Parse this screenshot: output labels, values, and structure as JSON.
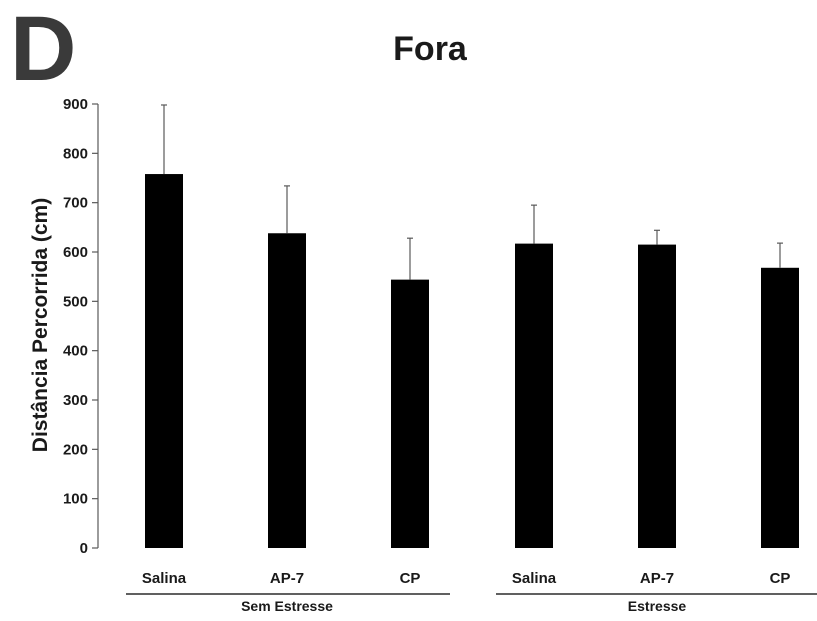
{
  "panel_letter": "D",
  "chart_data": {
    "type": "bar",
    "title": "Fora",
    "ylabel": "Distância Percorrida (cm)",
    "xlabel": "",
    "ylim": [
      0,
      900
    ],
    "yticks": [
      0,
      100,
      200,
      300,
      400,
      500,
      600,
      700,
      800,
      900
    ],
    "categories": [
      "Salina",
      "AP-7",
      "CP",
      "Salina",
      "AP-7",
      "CP"
    ],
    "values": [
      758,
      638,
      544,
      617,
      615,
      568
    ],
    "error_upper": [
      140,
      96,
      84,
      78,
      29,
      50
    ],
    "groups": [
      {
        "label": "Sem Estresse",
        "indices": [
          0,
          1,
          2
        ]
      },
      {
        "label": "Estresse",
        "indices": [
          3,
          4,
          5
        ]
      }
    ],
    "bar_color": "#000000",
    "grid": false,
    "legend": "none"
  }
}
